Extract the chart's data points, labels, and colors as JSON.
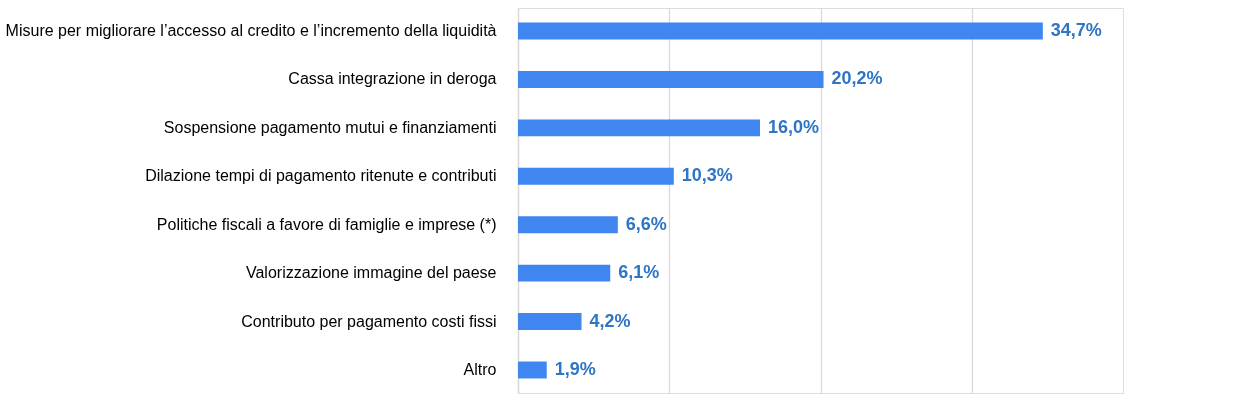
{
  "chart_data": {
    "type": "bar",
    "orientation": "horizontal",
    "categories": [
      "Misure per migliorare l’accesso al credito e l’incremento della liquidità",
      "Cassa integrazione in deroga",
      "Sospensione pagamento mutui e finanziamenti",
      "Dilazione tempi di pagamento ritenute e contributi",
      "Politiche fiscali a favore di famiglie e imprese (*)",
      "Valorizzazione immagine del paese",
      "Contributo per pagamento costi fissi",
      "Altro"
    ],
    "values": [
      34.7,
      20.2,
      16.0,
      10.3,
      6.6,
      6.1,
      4.2,
      1.9
    ],
    "value_labels": [
      "34,7%",
      "20,2%",
      "16,0%",
      "10,3%",
      "6,6%",
      "6,1%",
      "4,2%",
      "1,9%"
    ],
    "color": "#3f86f0",
    "xlim": [
      0,
      40
    ],
    "xticks": [
      {
        "value": 0,
        "label": null
      },
      {
        "value": 10,
        "label": null
      },
      {
        "value": 20,
        "label": null
      },
      {
        "value": 30,
        "label": null
      }
    ],
    "grid": "x",
    "tick_labels": "y"
  }
}
